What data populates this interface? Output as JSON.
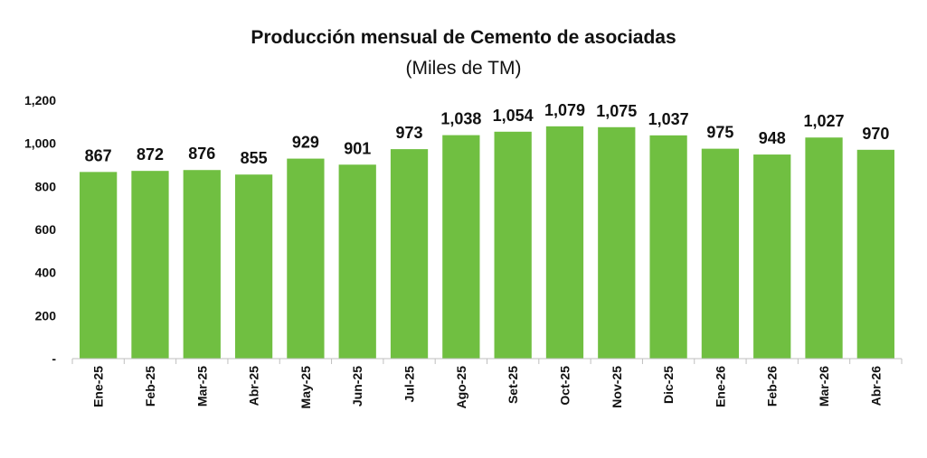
{
  "chart_data": {
    "type": "bar",
    "title": "Producción mensual de Cemento de asociadas",
    "subtitle": "(Miles de TM)",
    "xlabel": "",
    "ylabel": "",
    "ylim": [
      0,
      1200
    ],
    "y_ticks": [
      "-",
      "200",
      "400",
      "600",
      "800",
      "1,000",
      "1,200"
    ],
    "y_tick_values": [
      0,
      200,
      400,
      600,
      800,
      1000,
      1200
    ],
    "categories": [
      "Ene-25",
      "Feb-25",
      "Mar-25",
      "Abr-25",
      "May-25",
      "Jun-25",
      "Jul-25",
      "Ago-25",
      "Set-25",
      "Oct-25",
      "Nov-25",
      "Dic-25",
      "Ene-26",
      "Feb-26",
      "Mar-26",
      "Abr-26"
    ],
    "values": [
      867,
      872,
      876,
      855,
      929,
      901,
      973,
      1038,
      1054,
      1079,
      1075,
      1037,
      975,
      948,
      1027,
      970
    ],
    "value_labels": [
      "867",
      "872",
      "876",
      "855",
      "929",
      "901",
      "973",
      "1,038",
      "1,054",
      "1,079",
      "1,075",
      "1,037",
      "975",
      "948",
      "1,027",
      "970"
    ],
    "bar_color": "#70bf41",
    "grid": false,
    "legend": "none"
  }
}
